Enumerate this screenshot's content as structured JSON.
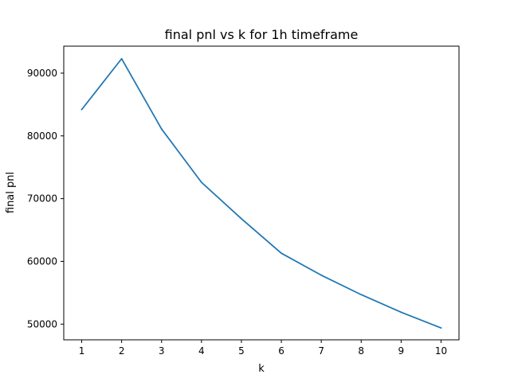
{
  "chart_data": {
    "type": "line",
    "title": "final pnl vs k for 1h timeframe",
    "xlabel": "k",
    "ylabel": "final pnl",
    "x": [
      1,
      2,
      3,
      4,
      5,
      6,
      7,
      8,
      9,
      10
    ],
    "series": [
      {
        "values": [
          84200,
          92300,
          81100,
          72600,
          66800,
          61300,
          57800,
          54700,
          51900,
          49400
        ],
        "color": "#1f77b4"
      }
    ],
    "xlim": [
      0.55,
      10.45
    ],
    "ylim": [
      47500,
      94300
    ],
    "xticks": [
      1,
      2,
      3,
      4,
      5,
      6,
      7,
      8,
      9,
      10
    ],
    "yticks": [
      50000,
      60000,
      70000,
      80000,
      90000
    ],
    "grid": false,
    "legend": "none"
  }
}
